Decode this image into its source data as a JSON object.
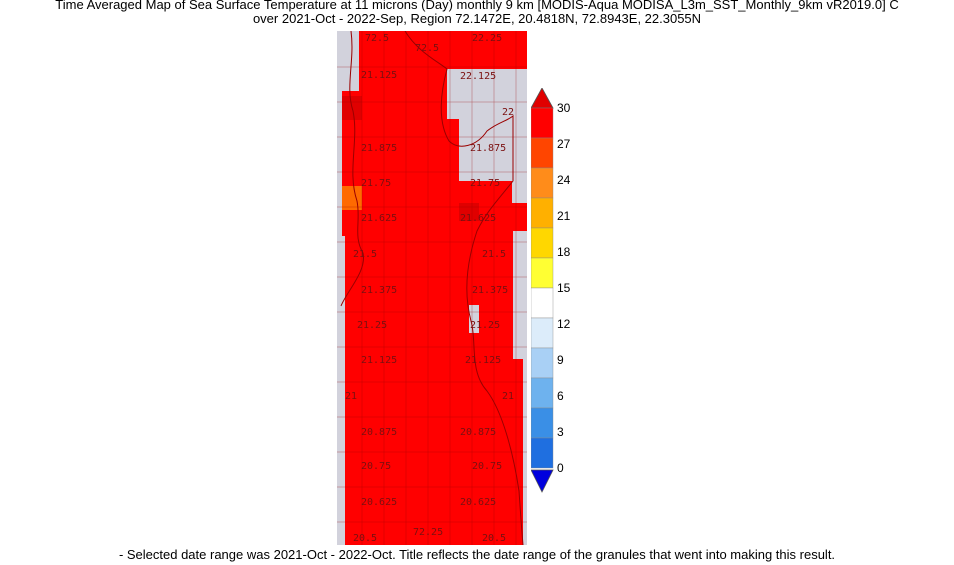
{
  "title": {
    "line1": "Time Averaged Map of Sea Surface Temperature at 11 microns (Day) monthly 9 km [MODIS-Aqua MODISA_L3m_SST_Monthly_9km vR2019.0] C",
    "line2": "over 2021-Oct - 2022-Sep, Region 72.1472E, 20.4818N, 72.8943E, 22.3055N"
  },
  "caption": "- Selected date range was 2021-Oct - 2022-Oct. Title reflects the date range of the granules that went into making this result.",
  "map": {
    "sea_color": "#ff0000",
    "land_color": "#d2d2dc",
    "warm_pixel_color": "#ff6a00",
    "dark_pixel_color": "#e00000",
    "coast_color": "#9a0000",
    "lat_labels_left": [
      "21.125",
      "21.875",
      "21.75",
      "21.625",
      "21.5",
      "21.375",
      "21.25",
      "21.125",
      "21",
      "20.875",
      "20.75",
      "20.625",
      "20.5"
    ],
    "lat_labels_right": [
      "22.25",
      "22.125",
      "22",
      "21.875",
      "21.75",
      "21.625",
      "21.5",
      "21.375",
      "21.25",
      "21.125",
      "21",
      "20.875",
      "20.75",
      "20.625",
      "20.5"
    ],
    "lon_labels": [
      "72.5",
      "72.5",
      "72.25",
      "22"
    ]
  },
  "colorbar": {
    "ticks": [
      "30",
      "27",
      "24",
      "21",
      "18",
      "15",
      "12",
      "9",
      "6",
      "3",
      "0"
    ],
    "colors": [
      "#ff0000",
      "#ff4500",
      "#ff8c1a",
      "#ffb000",
      "#ffd700",
      "#ffff33",
      "#ffffff",
      "#dcecfa",
      "#a9d0f5",
      "#6eb2ee",
      "#3a8fe6",
      "#1f6fe0"
    ],
    "arrow_top_color": "#e00000",
    "arrow_bottom_color": "#0000dd"
  }
}
